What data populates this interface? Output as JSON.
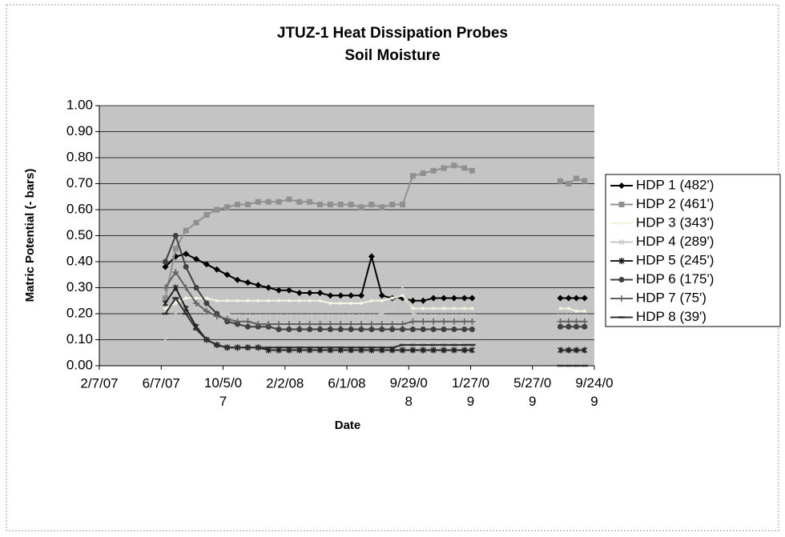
{
  "chart_data": {
    "type": "line",
    "title": "JTUZ-1 Heat Dissipation Probes",
    "subtitle": "Soil Moisture",
    "x_label": "Date",
    "y_label": "Matric Potential (- bars)",
    "x": [
      "6/15/07",
      "7/5/07",
      "7/25/07",
      "8/14/07",
      "9/3/07",
      "9/23/07",
      "10/13/07",
      "11/2/07",
      "11/22/07",
      "12/12/07",
      "1/1/08",
      "1/21/08",
      "2/10/08",
      "3/1/08",
      "3/21/08",
      "4/10/08",
      "4/30/08",
      "5/20/08",
      "6/9/08",
      "6/29/08",
      "7/19/08",
      "8/8/08",
      "8/28/08",
      "9/17/08",
      "10/7/08",
      "10/27/08",
      "11/16/08",
      "12/6/08",
      "12/26/08",
      "1/15/09",
      "1/30/09",
      "4/15/09",
      "7/20/09",
      "8/5/09",
      "8/20/09",
      "9/5/09"
    ],
    "xlim": [
      "2/7/07",
      "9/24/09"
    ],
    "xticks": [
      "2/7/07",
      "6/7/07",
      "10/5/07",
      "2/2/08",
      "6/1/08",
      "9/29/08",
      "1/27/09",
      "5/27/09",
      "9/24/09"
    ],
    "ylim": [
      0,
      1
    ],
    "yticks": [
      {
        "value": 0,
        "label": "0.00"
      },
      {
        "value": 0.1,
        "label": "0.10"
      },
      {
        "value": 0.2,
        "label": "0.20"
      },
      {
        "value": 0.3,
        "label": "0.30"
      },
      {
        "value": 0.4,
        "label": "0.40"
      },
      {
        "value": 0.5,
        "label": "0.50"
      },
      {
        "value": 0.6,
        "label": "0.60"
      },
      {
        "value": 0.7,
        "label": "0.70"
      },
      {
        "value": 0.8,
        "label": "0.80"
      },
      {
        "value": 0.9,
        "label": "0.90"
      },
      {
        "value": 1,
        "label": "1.00"
      }
    ],
    "grid": true,
    "legend": "right",
    "series": [
      {
        "name": "HDP 1 (482')",
        "color": "#000000",
        "marker": "diamond",
        "values": [
          0.38,
          0.42,
          0.43,
          0.41,
          0.39,
          0.37,
          0.35,
          0.33,
          0.32,
          0.31,
          0.3,
          0.29,
          0.29,
          0.28,
          0.28,
          0.28,
          0.27,
          0.27,
          0.27,
          0.27,
          0.42,
          0.27,
          0.26,
          0.26,
          0.25,
          0.25,
          0.26,
          0.26,
          0.26,
          0.26,
          0.26,
          null,
          0.26,
          0.26,
          0.26,
          0.26
        ]
      },
      {
        "name": "HDP 2 (461')",
        "color": "#909090",
        "marker": "square",
        "values": [
          0.26,
          0.45,
          0.52,
          0.55,
          0.58,
          0.6,
          0.61,
          0.62,
          0.62,
          0.63,
          0.63,
          0.63,
          0.64,
          0.63,
          0.63,
          0.62,
          0.62,
          0.62,
          0.62,
          0.61,
          0.62,
          0.61,
          0.62,
          0.62,
          0.73,
          0.74,
          0.75,
          0.76,
          0.77,
          0.76,
          0.75,
          null,
          0.71,
          0.7,
          0.72,
          0.71
        ]
      },
      {
        "name": "HDP 3 (343')",
        "color": "#f4f4e0",
        "marker": "dot",
        "values": [
          0.22,
          0.24,
          0.26,
          0.26,
          0.26,
          0.25,
          0.25,
          0.25,
          0.25,
          0.25,
          0.25,
          0.25,
          0.25,
          0.25,
          0.25,
          0.25,
          0.24,
          0.24,
          0.24,
          0.24,
          0.25,
          0.25,
          0.26,
          0.27,
          0.22,
          0.22,
          0.22,
          0.22,
          0.22,
          0.22,
          0.22,
          null,
          0.22,
          0.22,
          0.21,
          0.21
        ]
      },
      {
        "name": "HDP 4 (289')",
        "color": "#c8c8c8",
        "marker": "x",
        "values": [
          0.1,
          0.2,
          0.24,
          0.22,
          0.21,
          0.2,
          0.2,
          0.19,
          0.19,
          0.19,
          0.19,
          0.19,
          0.19,
          0.19,
          0.19,
          0.19,
          0.19,
          0.19,
          0.19,
          0.19,
          0.19,
          0.2,
          0.22,
          0.3,
          0.2,
          0.19,
          0.19,
          0.19,
          0.19,
          0.19,
          0.19,
          null,
          0.19,
          0.19,
          0.19,
          0.19
        ]
      },
      {
        "name": "HDP 5 (245')",
        "color": "#202020",
        "marker": "star",
        "values": [
          0.24,
          0.3,
          0.22,
          0.15,
          0.1,
          0.08,
          0.07,
          0.07,
          0.07,
          0.07,
          0.06,
          0.06,
          0.06,
          0.06,
          0.06,
          0.06,
          0.06,
          0.06,
          0.06,
          0.06,
          0.06,
          0.06,
          0.06,
          0.06,
          0.06,
          0.06,
          0.06,
          0.06,
          0.06,
          0.06,
          0.06,
          null,
          0.06,
          0.06,
          0.06,
          0.06
        ]
      },
      {
        "name": "HDP 6 (175')",
        "color": "#404040",
        "marker": "circle",
        "values": [
          0.4,
          0.5,
          0.38,
          0.3,
          0.24,
          0.2,
          0.17,
          0.16,
          0.15,
          0.15,
          0.15,
          0.14,
          0.14,
          0.14,
          0.14,
          0.14,
          0.14,
          0.14,
          0.14,
          0.14,
          0.14,
          0.14,
          0.14,
          0.14,
          0.14,
          0.14,
          0.14,
          0.14,
          0.14,
          0.14,
          0.14,
          null,
          0.15,
          0.15,
          0.15,
          0.15
        ]
      },
      {
        "name": "HDP 7 (75')",
        "color": "#606060",
        "marker": "plus",
        "values": [
          0.3,
          0.36,
          0.3,
          0.24,
          0.21,
          0.19,
          0.18,
          0.17,
          0.17,
          0.16,
          0.16,
          0.16,
          0.16,
          0.16,
          0.16,
          0.16,
          0.16,
          0.16,
          0.16,
          0.16,
          0.16,
          0.16,
          0.16,
          0.16,
          0.17,
          0.17,
          0.17,
          0.17,
          0.17,
          0.17,
          0.17,
          null,
          0.17,
          0.17,
          0.17,
          0.17
        ]
      },
      {
        "name": "HDP 8 (39')",
        "color": "#303030",
        "marker": "dash",
        "values": [
          0.2,
          0.26,
          0.2,
          0.14,
          0.1,
          0.08,
          0.07,
          0.07,
          0.07,
          0.07,
          0.07,
          0.07,
          0.07,
          0.07,
          0.07,
          0.07,
          0.07,
          0.07,
          0.07,
          0.07,
          0.07,
          0.07,
          0.07,
          0.08,
          0.08,
          0.08,
          0.08,
          0.08,
          0.08,
          0.08,
          0.08,
          null,
          0.0,
          0.0,
          0.0,
          0.0
        ]
      }
    ]
  }
}
